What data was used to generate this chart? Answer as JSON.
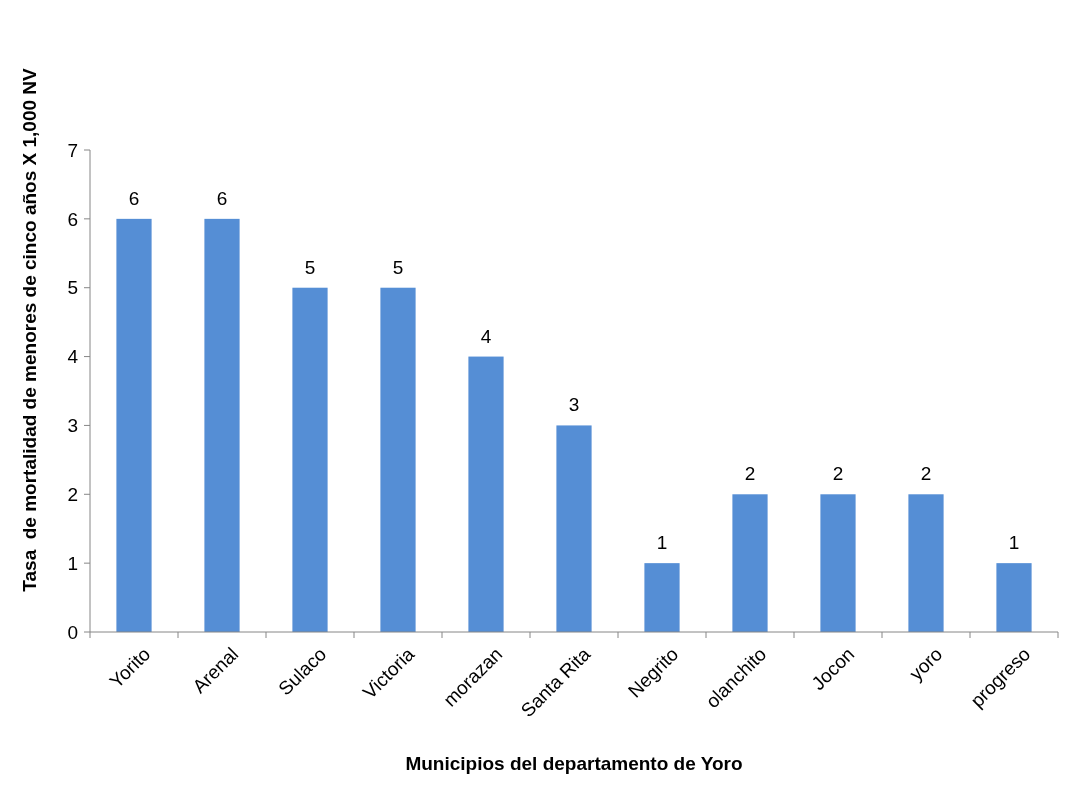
{
  "chart_data": {
    "type": "bar",
    "xlabel": "Municipios del departamento de Yoro",
    "ylabel": "Tasa  de mortalidad de menores de cinco años X 1,000 NV",
    "categories": [
      "Yorito",
      "Arenal",
      "Sulaco",
      "Victoria",
      "morazan",
      "Santa Rita",
      "Negrito",
      "olanchito",
      "Jocon",
      "yoro",
      "progreso"
    ],
    "values": [
      6,
      6,
      5,
      5,
      4,
      3,
      1,
      2,
      2,
      2,
      1
    ],
    "color": "#558ed5",
    "ylim": [
      0,
      7
    ],
    "yticks": [
      0,
      1,
      2,
      3,
      4,
      5,
      6,
      7
    ],
    "grid": false,
    "data_labels": true
  }
}
